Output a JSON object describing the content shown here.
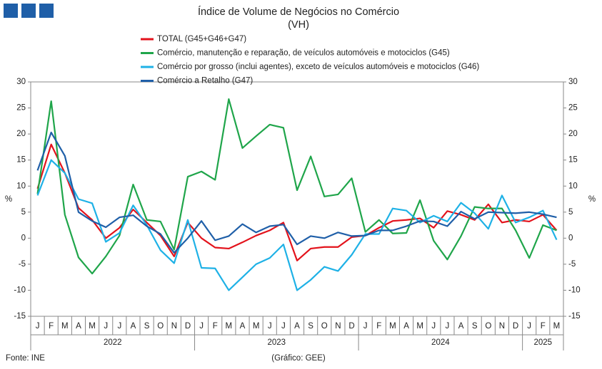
{
  "chart_data": {
    "type": "line",
    "title": "Índice de Volume de Negócios no Comércio",
    "subtitle": "(VH)",
    "source": "Fonte: INE",
    "note": "(Gráfico: GEE)",
    "ylabel": "%",
    "y2label": "%",
    "categories": [
      "J",
      "F",
      "M",
      "A",
      "M",
      "J",
      "J",
      "A",
      "S",
      "O",
      "N",
      "D",
      "J",
      "F",
      "M",
      "A",
      "M",
      "J",
      "J",
      "A",
      "S",
      "O",
      "N",
      "D",
      "J",
      "F",
      "M",
      "A",
      "M",
      "J",
      "J",
      "A",
      "S",
      "O",
      "N",
      "D",
      "J",
      "F",
      "M"
    ],
    "years": [
      "2022",
      "2023",
      "2024",
      "2025"
    ],
    "ylim": [
      -15,
      30
    ],
    "yticks": [
      -15,
      -10,
      -5,
      0,
      5,
      10,
      15,
      20,
      25,
      30
    ],
    "y2lim": [
      -15,
      30
    ],
    "y2ticks": [
      -15,
      -10,
      -5,
      0,
      5,
      10,
      15,
      20,
      25,
      30
    ],
    "grid": false,
    "series": [
      {
        "name": "TOTAL (G45+G46+G47)",
        "color": "#e3121b",
        "values": [
          9.5,
          18,
          12.5,
          5.8,
          3.5,
          0,
          2,
          5.5,
          3,
          0.5,
          -3.5,
          3,
          0,
          -1.8,
          -2,
          -0.8,
          0.5,
          1.5,
          3,
          -4.3,
          -2,
          -1.7,
          -1.7,
          0.2,
          0.5,
          2,
          3.3,
          3.5,
          3.8,
          2,
          5.2,
          4.5,
          3.5,
          6.5,
          3,
          3.5,
          3.2,
          4.5,
          1.5
        ]
      },
      {
        "name": "Comércio, manutenção e reparação, de veículos automóveis e motociclos (G45)",
        "color": "#1fa54a",
        "values": [
          8.5,
          26.3,
          4.5,
          -3.7,
          -6.8,
          -3.5,
          0.5,
          10.3,
          3.5,
          3.2,
          -2.2,
          11.8,
          12.8,
          11.2,
          26.7,
          17.3,
          19.6,
          21.8,
          21.2,
          9.2,
          15.7,
          8,
          8.4,
          11.5,
          1.2,
          3.5,
          0.9,
          1,
          7.3,
          -0.5,
          -4.1,
          0.4,
          6,
          5.7,
          5.7,
          1.5,
          -3.8,
          2.5,
          1.5
        ]
      },
      {
        "name": "Comércio por grosso (inclui agentes), exceto de veículos automóveis e motociclos (G46)",
        "color": "#1eb1e6",
        "values": [
          8.2,
          15,
          12.5,
          7.5,
          6.7,
          -0.7,
          1,
          6.3,
          2.5,
          -2.3,
          -4.8,
          3.5,
          -5.7,
          -5.8,
          -10,
          -7.5,
          -5,
          -3.8,
          -1.2,
          -10,
          -8,
          -5.5,
          -6.3,
          -3.2,
          0.8,
          0.8,
          5.7,
          5.3,
          3,
          4.3,
          3.2,
          6.8,
          4.8,
          1.8,
          8.2,
          3,
          4,
          5.3,
          -0.3
        ]
      },
      {
        "name": "Comércio a Retalho (G47)",
        "color": "#1f5fa8",
        "values": [
          13,
          20.3,
          15.8,
          5,
          3.3,
          2.1,
          4,
          4.4,
          2.3,
          0.8,
          -2.8,
          0,
          3.3,
          -0.4,
          0.4,
          2.7,
          1.1,
          2.3,
          2.6,
          -1.2,
          0.4,
          0,
          1.1,
          0.4,
          0.5,
          1.5,
          1.5,
          2.3,
          3.3,
          3.2,
          2.3,
          5.1,
          3.7,
          5,
          4.9,
          4.8,
          5,
          4.6,
          4
        ]
      }
    ]
  }
}
